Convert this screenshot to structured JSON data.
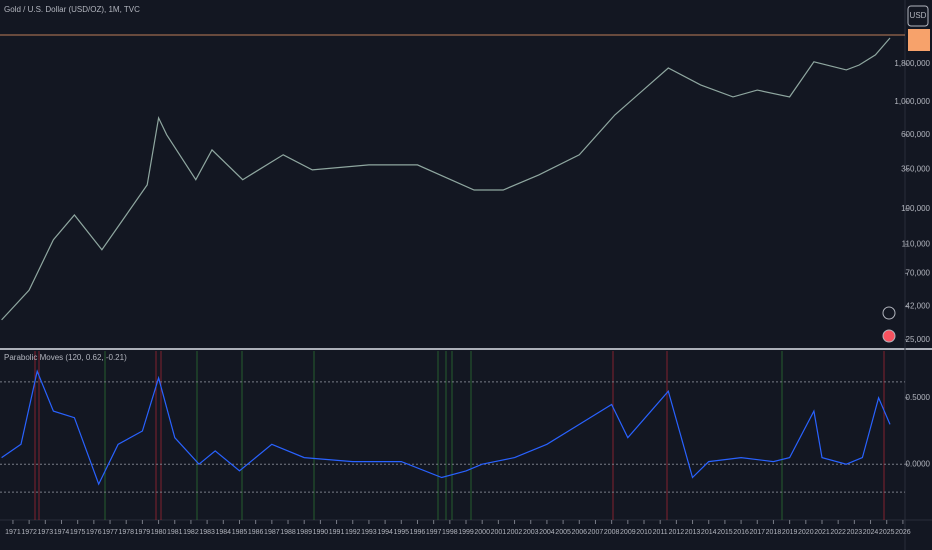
{
  "currency": "USD",
  "chart_data": [
    {
      "type": "line",
      "title": "Gold / U.S. Dollar (USD/OZ), 1M, TVC",
      "log": true,
      "color": "#8fa7a0",
      "x": [
        1970.3,
        1972,
        1973.5,
        1974.8,
        1976.5,
        1978,
        1979.3,
        1980.0,
        1980.5,
        1982.3,
        1983.3,
        1985.2,
        1987.7,
        1989.5,
        1993,
        1996,
        1999.5,
        2001.3,
        2003.5,
        2006,
        2008.2,
        2011.5,
        2013.5,
        2015.5,
        2017,
        2019,
        2020.5,
        2022.5,
        2023.3,
        2024.3,
        2025.2
      ],
      "values": [
        34000,
        54000,
        118000,
        173000,
        101000,
        173000,
        276000,
        780000,
        600000,
        299000,
        475000,
        299000,
        440000,
        348000,
        376000,
        376000,
        255000,
        255000,
        322000,
        440000,
        817000,
        1690000,
        1300000,
        1080000,
        1200000,
        1080000,
        1860000,
        1640000,
        1770000,
        2070000,
        2690000
      ],
      "xlim": [
        1970.2,
        2026.13
      ],
      "ylim": [
        22000,
        4850000
      ],
      "yticks": [
        {
          "value": 25000,
          "label": "25,000"
        },
        {
          "value": 42000,
          "label": "42,000"
        },
        {
          "value": 70000,
          "label": "70,000"
        },
        {
          "value": 110000,
          "label": "110,000"
        },
        {
          "value": 190000,
          "label": "190,000"
        },
        {
          "value": 350000,
          "label": "350,000"
        },
        {
          "value": 600000,
          "label": "600,000"
        },
        {
          "value": 1000000,
          "label": "1,000,000"
        },
        {
          "value": 1800000,
          "label": "1,800,000"
        }
      ]
    },
    {
      "type": "line",
      "title": "Parabolic Moves (120, 0.62, -0.21)",
      "color": "#2962ff",
      "x": [
        1970.3,
        1971.5,
        1972.5,
        1973.5,
        1974.8,
        1976.3,
        1977.5,
        1979,
        1980,
        1981,
        1982.5,
        1983.5,
        1985,
        1987,
        1989,
        1992,
        1995,
        1997.5,
        1999,
        2000,
        2002,
        2004,
        2006,
        2008,
        2009,
        2011.5,
        2013,
        2014,
        2016,
        2018,
        2019,
        2020.5,
        2021,
        2022.5,
        2023.5,
        2024.5,
        2025.2
      ],
      "values": [
        0.05,
        0.15,
        0.7,
        0.4,
        0.35,
        -0.15,
        0.15,
        0.25,
        0.65,
        0.2,
        0.0,
        0.1,
        -0.05,
        0.15,
        0.05,
        0.02,
        0.02,
        -0.1,
        -0.05,
        0.0,
        0.05,
        0.15,
        0.3,
        0.45,
        0.2,
        0.55,
        -0.1,
        0.02,
        0.05,
        0.02,
        0.05,
        0.4,
        0.05,
        0.0,
        0.05,
        0.5,
        0.3
      ],
      "levels": [
        0.62,
        0,
        -0.21
      ],
      "xlim": [
        1970.2,
        2026.13
      ],
      "ylim": [
        -0.42,
        0.86
      ],
      "yticks": [
        {
          "value": 0.5,
          "label": "0.5000"
        },
        {
          "value": 0,
          "label": "0.0000"
        }
      ],
      "xticks": [
        1971,
        1972,
        1973,
        1974,
        1975,
        1976,
        1977,
        1978,
        1979,
        1980,
        1981,
        1982,
        1983,
        1984,
        1985,
        1986,
        1987,
        1988,
        1989,
        1990,
        1991,
        1992,
        1993,
        1994,
        1995,
        1996,
        1997,
        1998,
        1999,
        2000,
        2001,
        2002,
        2003,
        2004,
        2005,
        2006,
        2007,
        2008,
        2009,
        2010,
        2011,
        2012,
        2013,
        2014,
        2015,
        2016,
        2017,
        2018,
        2019,
        2020,
        2021,
        2022,
        2023,
        2024,
        2025,
        2026
      ]
    }
  ]
}
